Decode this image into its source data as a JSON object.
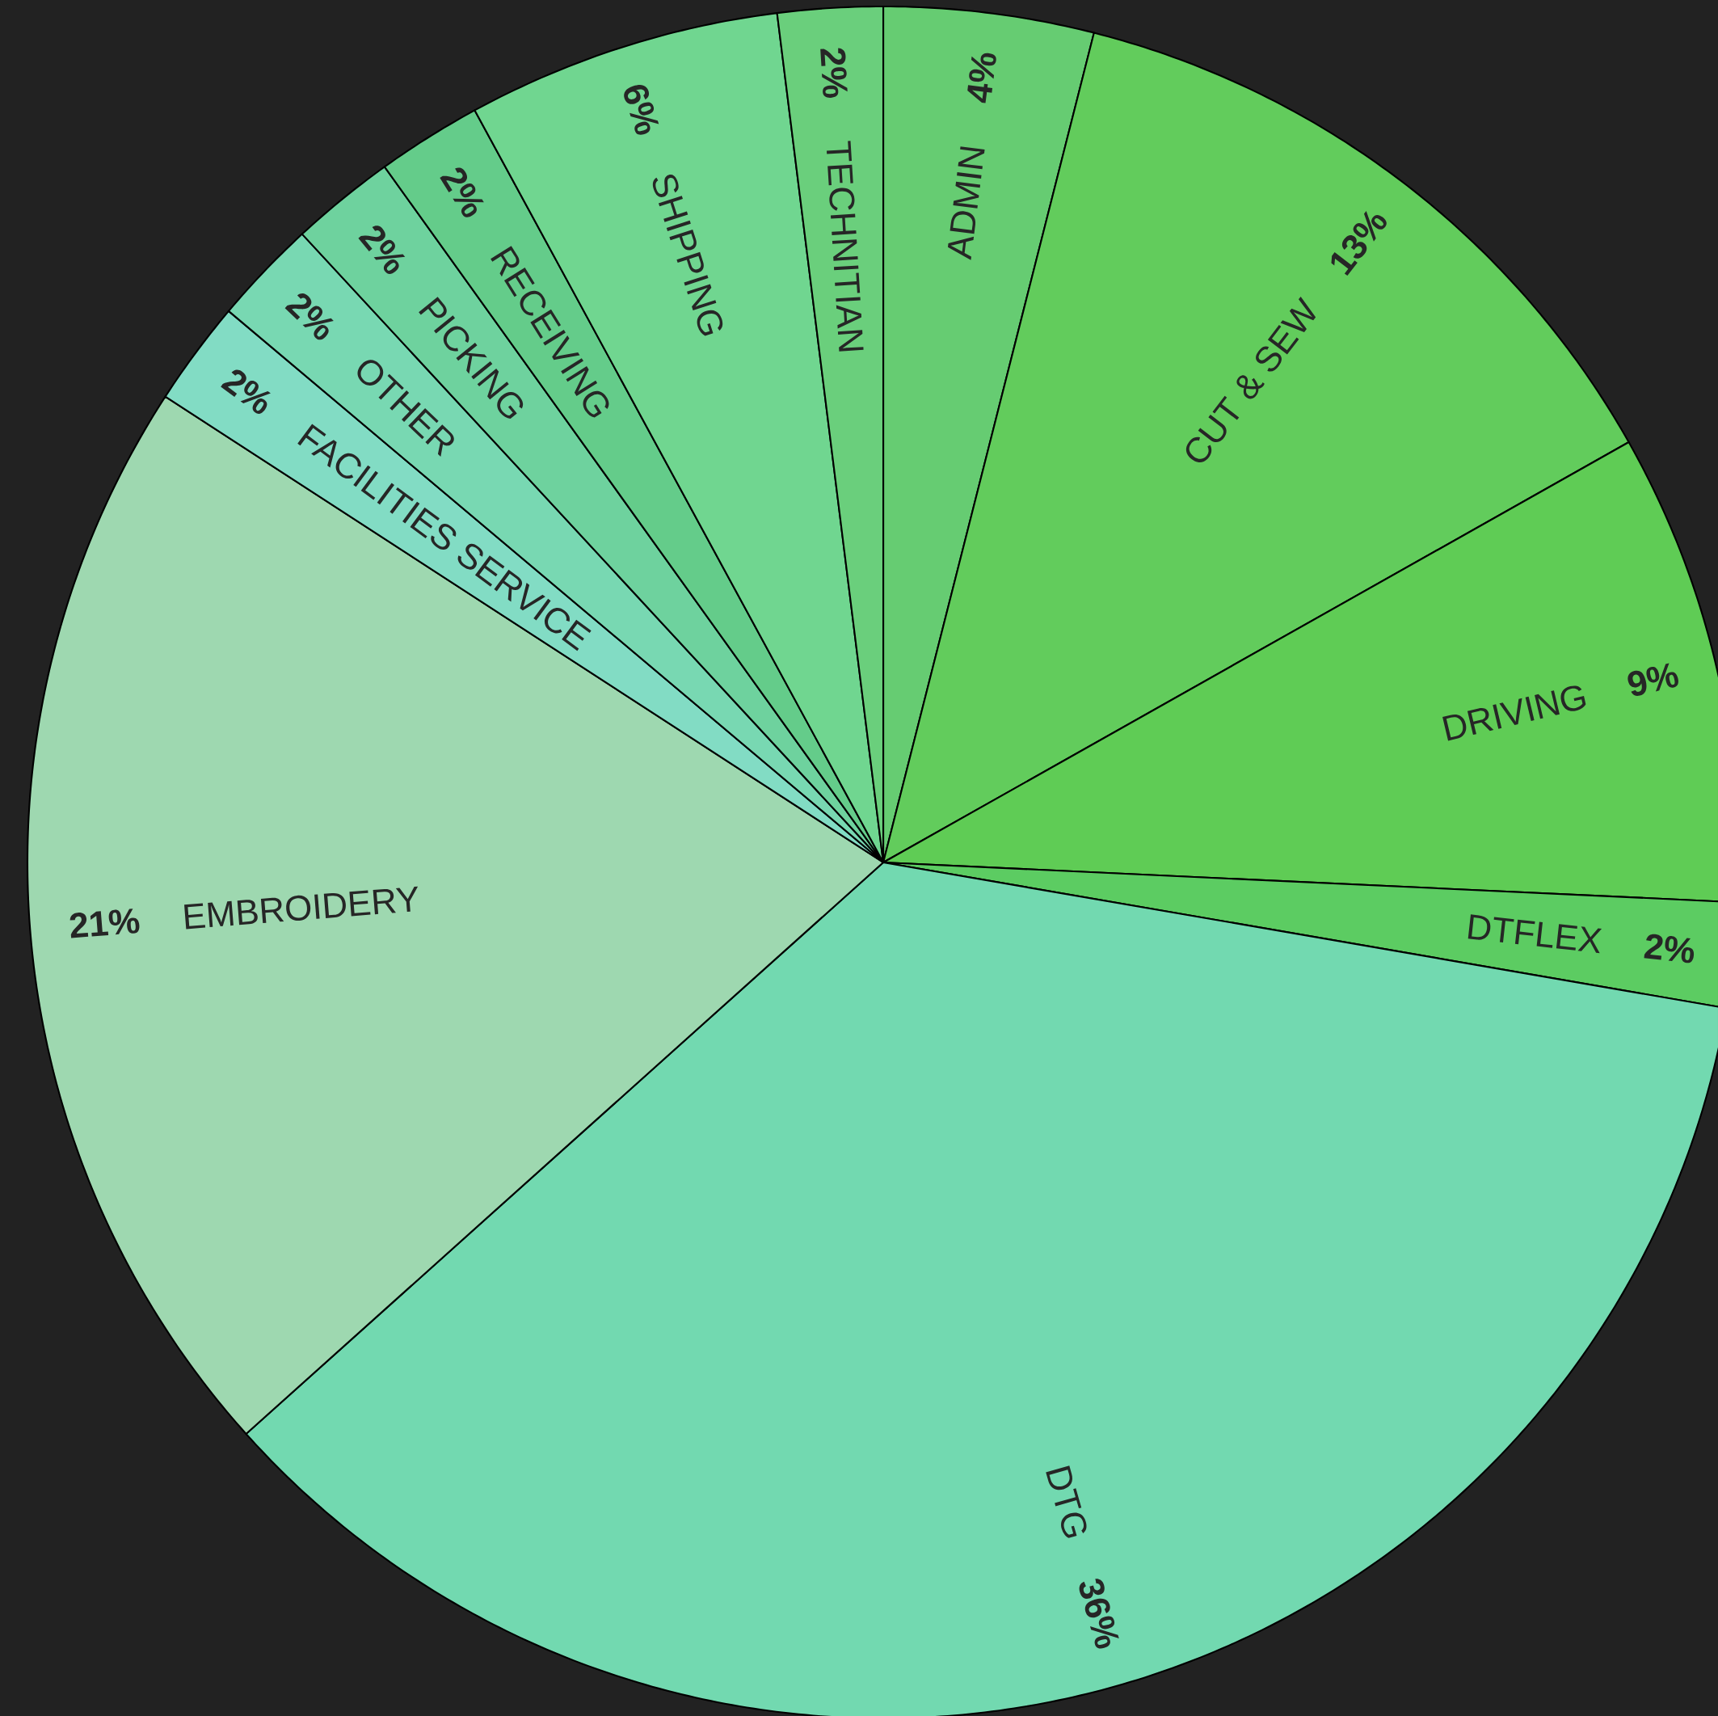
{
  "chart_data": {
    "type": "pie",
    "categories": [
      "ADMIN",
      "CUT & SEW",
      "DRIVING",
      "DTFLEX",
      "DTG",
      "EMBROIDERY",
      "FACILITIES SERVICE",
      "OTHER",
      "PICKING",
      "RECEIVING",
      "SHIPPING",
      "TECHNITIAN"
    ],
    "values": [
      4,
      13,
      9,
      2,
      36,
      21,
      2,
      2,
      2,
      2,
      6,
      2
    ],
    "value_labels": [
      "4%",
      "13%",
      "9%",
      "2%",
      "36%",
      "21%",
      "2%",
      "2%",
      "2%",
      "2%",
      "6%",
      "2%"
    ],
    "colors": [
      "#66cc72",
      "#62cc5c",
      "#5fcc55",
      "#5ccc62",
      "#72d9b0",
      "#9ed8b0",
      "#82dcc4",
      "#78d8b2",
      "#6ed29e",
      "#64cc8a",
      "#70d690",
      "#6acf7c"
    ]
  }
}
